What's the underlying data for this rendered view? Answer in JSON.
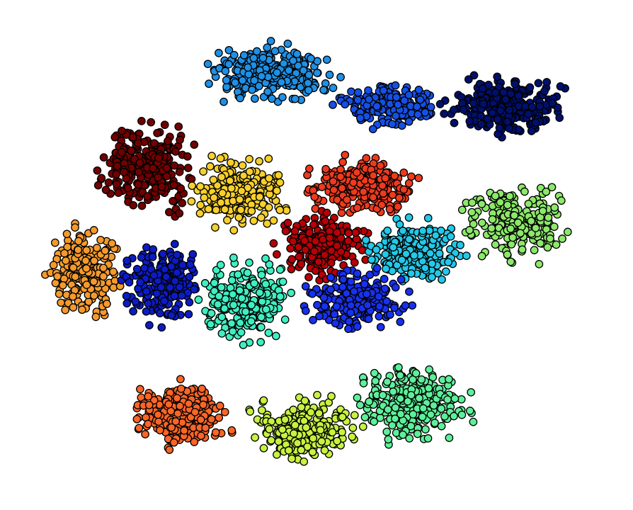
{
  "chart_data": {
    "type": "scatter",
    "title": "",
    "xlabel": "",
    "ylabel": "",
    "axes_visible": false,
    "grid": false,
    "legend": "none",
    "marker": "circle",
    "marker_edge_color": "#000000",
    "note": "",
    "xlim": [
      5.8,
      15.2
    ],
    "ylim": [
      47.2,
      55.1
    ],
    "series": [
      {
        "color": "#1e90e6",
        "center": [
          9.8,
          54.1
        ],
        "spread": [
          0.75,
          0.38
        ],
        "count": 260
      },
      {
        "color": "#1550e6",
        "center": [
          11.6,
          53.6
        ],
        "spread": [
          0.6,
          0.28
        ],
        "count": 180
      },
      {
        "color": "#00106e",
        "center": [
          13.4,
          53.6
        ],
        "spread": [
          0.75,
          0.38
        ],
        "count": 260
      },
      {
        "color": "#730000",
        "center": [
          7.9,
          52.6
        ],
        "spread": [
          0.55,
          0.6
        ],
        "count": 260
      },
      {
        "color": "#f7d02b",
        "center": [
          9.3,
          52.2
        ],
        "spread": [
          0.55,
          0.45
        ],
        "count": 260
      },
      {
        "color": "#ee3a1e",
        "center": [
          11.2,
          52.3
        ],
        "spread": [
          0.65,
          0.38
        ],
        "count": 240
      },
      {
        "color": "#8ce86a",
        "center": [
          13.6,
          51.7
        ],
        "spread": [
          0.65,
          0.5
        ],
        "count": 260
      },
      {
        "color": "#f49a2c",
        "center": [
          6.9,
          50.9
        ],
        "spread": [
          0.4,
          0.55
        ],
        "count": 210
      },
      {
        "color": "#0b1cc6",
        "center": [
          8.1,
          50.7
        ],
        "spread": [
          0.45,
          0.5
        ],
        "count": 220
      },
      {
        "color": "#b80006",
        "center": [
          10.6,
          51.3
        ],
        "spread": [
          0.55,
          0.4
        ],
        "count": 230
      },
      {
        "color": "#22c9e9",
        "center": [
          12.0,
          51.2
        ],
        "spread": [
          0.6,
          0.38
        ],
        "count": 230
      },
      {
        "color": "#3df0c2",
        "center": [
          9.4,
          50.4
        ],
        "spread": [
          0.55,
          0.5
        ],
        "count": 240
      },
      {
        "color": "#1731ee",
        "center": [
          11.1,
          50.4
        ],
        "spread": [
          0.6,
          0.38
        ],
        "count": 230
      },
      {
        "color": "#fb6526",
        "center": [
          8.4,
          48.5
        ],
        "spread": [
          0.55,
          0.45
        ],
        "count": 230
      },
      {
        "color": "#c7f23e",
        "center": [
          10.3,
          48.3
        ],
        "spread": [
          0.65,
          0.4
        ],
        "count": 240
      },
      {
        "color": "#5df09a",
        "center": [
          12.0,
          48.7
        ],
        "spread": [
          0.7,
          0.5
        ],
        "count": 260
      }
    ]
  }
}
